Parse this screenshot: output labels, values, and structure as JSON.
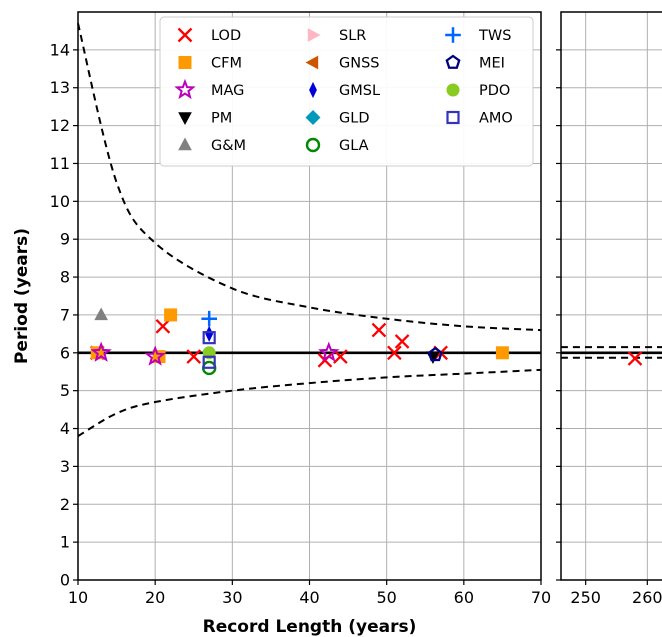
{
  "chart_data": {
    "type": "scatter",
    "xlabel": "Record Length (years)",
    "ylabel": "Period (years)",
    "panels": [
      {
        "xlim": [
          10,
          70
        ],
        "xticks": [
          10,
          20,
          30,
          40,
          50,
          60,
          70
        ]
      },
      {
        "xlim": [
          246,
          264
        ],
        "xticks": [
          250,
          260
        ]
      }
    ],
    "ylim": [
      0,
      15
    ],
    "yticks": [
      0,
      1,
      2,
      3,
      4,
      5,
      6,
      7,
      8,
      9,
      10,
      11,
      12,
      13,
      14
    ],
    "grid": true,
    "reference_line": 6,
    "envelope_curves": [
      {
        "panel": 0,
        "description": "dashed",
        "points": [
          [
            10,
            14.7
          ],
          [
            15,
            10.5
          ],
          [
            20,
            8.9
          ],
          [
            30,
            7.7
          ],
          [
            40,
            7.2
          ],
          [
            50,
            6.9
          ],
          [
            60,
            6.7
          ],
          [
            70,
            6.6
          ]
        ]
      },
      {
        "panel": 0,
        "description": "dashed",
        "points": [
          [
            10,
            3.8
          ],
          [
            15,
            4.4
          ],
          [
            20,
            4.7
          ],
          [
            30,
            5.0
          ],
          [
            40,
            5.2
          ],
          [
            50,
            5.35
          ],
          [
            60,
            5.45
          ],
          [
            70,
            5.55
          ]
        ]
      },
      {
        "panel": 1,
        "description": "dashed",
        "points": [
          [
            246,
            6.15
          ],
          [
            264,
            6.15
          ]
        ]
      },
      {
        "panel": 1,
        "description": "dashed",
        "points": [
          [
            246,
            5.87
          ],
          [
            264,
            5.87
          ]
        ]
      }
    ],
    "legend_position": "top",
    "series": [
      {
        "name": "LOD",
        "color": "#ff0000",
        "marker": "x",
        "points": [
          [
            12.5,
            6.0
          ],
          [
            21,
            6.7
          ],
          [
            25,
            5.9
          ],
          [
            42,
            5.8
          ],
          [
            44,
            5.9
          ],
          [
            49,
            6.6
          ],
          [
            51,
            6.0
          ],
          [
            52,
            6.3
          ],
          [
            57,
            6.0
          ],
          [
            258,
            5.85
          ]
        ]
      },
      {
        "name": "CFM",
        "color": "#ff9900",
        "marker": "square",
        "points": [
          [
            12.5,
            6.0
          ],
          [
            20.5,
            5.9
          ],
          [
            22,
            7.0
          ],
          [
            65,
            6.0
          ]
        ]
      },
      {
        "name": "MAG",
        "color": "#bb00bb",
        "marker": "star",
        "points": [
          [
            13,
            6.0
          ],
          [
            20,
            5.9
          ],
          [
            42.5,
            6.0
          ]
        ]
      },
      {
        "name": "PM",
        "color": "#000000",
        "marker": "triangle-down",
        "points": [
          [
            56,
            5.9
          ]
        ]
      },
      {
        "name": "G&M",
        "color": "#808080",
        "marker": "triangle-up",
        "points": [
          [
            13,
            7.0
          ]
        ]
      },
      {
        "name": "SLR",
        "color": "#ffb6c1",
        "marker": "triangle-right",
        "points": []
      },
      {
        "name": "GNSS",
        "color": "#cc5500",
        "marker": "triangle-left",
        "points": []
      },
      {
        "name": "GMSL",
        "color": "#0000dd",
        "marker": "thin-diamond",
        "points": [
          [
            27,
            6.5
          ]
        ]
      },
      {
        "name": "GLD",
        "color": "#0099bb",
        "marker": "diamond",
        "points": []
      },
      {
        "name": "GLA",
        "color": "#008800",
        "marker": "circle-open",
        "points": [
          [
            27,
            5.6
          ]
        ]
      },
      {
        "name": "TWS",
        "color": "#0066ff",
        "marker": "plus",
        "points": [
          [
            27,
            6.9
          ]
        ]
      },
      {
        "name": "MEI",
        "color": "#000080",
        "marker": "pentagon-open",
        "points": [
          [
            56.3,
            5.95
          ]
        ]
      },
      {
        "name": "PDO",
        "color": "#88cc22",
        "marker": "circle",
        "points": [
          [
            27,
            6.0
          ]
        ]
      },
      {
        "name": "AMO",
        "color": "#3333bb",
        "marker": "square-open",
        "points": [
          [
            27,
            6.4
          ],
          [
            27,
            5.75
          ]
        ]
      }
    ]
  }
}
